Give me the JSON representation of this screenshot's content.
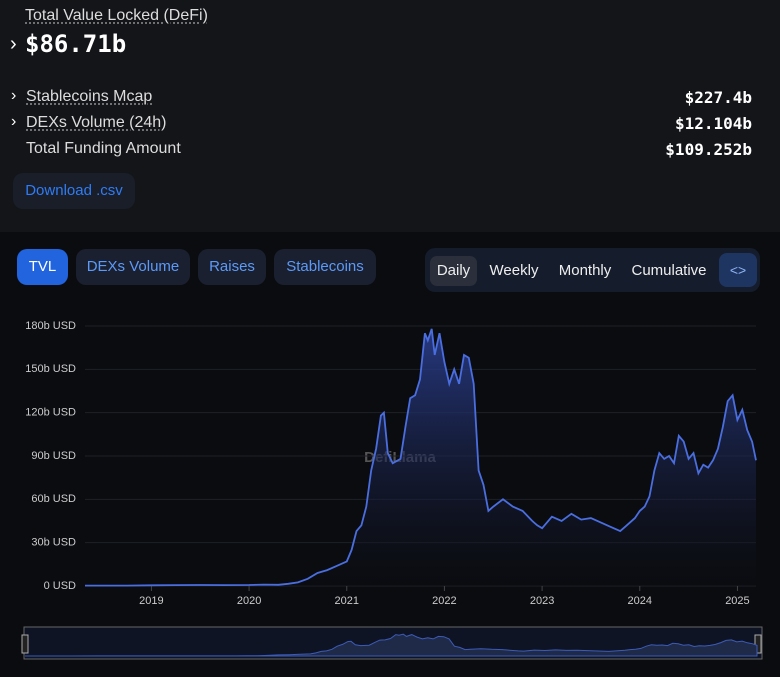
{
  "header": {
    "tvl_label": "Total Value Locked (DeFi)",
    "tvl_value": "$86.71b"
  },
  "stats": [
    {
      "label": "Stablecoins Mcap",
      "value": "$227.4b"
    },
    {
      "label": "DEXs Volume (24h)",
      "value": "$12.104b"
    },
    {
      "label": "Total Funding Amount",
      "value": "$109.252b"
    }
  ],
  "download": "Download .csv",
  "tabs": [
    "TVL",
    "DEXs Volume",
    "Raises",
    "Stablecoins"
  ],
  "periods": [
    "Daily",
    "Weekly",
    "Monthly",
    "Cumulative"
  ],
  "watermark": "DefiLlama",
  "chart_data": {
    "type": "area",
    "color": "#4a6ee0",
    "grid": true,
    "x": [
      2018.32,
      2018.5,
      2018.75,
      2019.0,
      2019.25,
      2019.5,
      2019.75,
      2020.0,
      2020.15,
      2020.3,
      2020.4,
      2020.5,
      2020.6,
      2020.7,
      2020.8,
      2020.9,
      2021.0,
      2021.05,
      2021.1,
      2021.15,
      2021.2,
      2021.25,
      2021.3,
      2021.35,
      2021.38,
      2021.42,
      2021.47,
      2021.55,
      2021.6,
      2021.65,
      2021.7,
      2021.75,
      2021.8,
      2021.83,
      2021.87,
      2021.9,
      2021.95,
      2022.0,
      2022.05,
      2022.1,
      2022.15,
      2022.2,
      2022.25,
      2022.3,
      2022.35,
      2022.4,
      2022.45,
      2022.5,
      2022.6,
      2022.7,
      2022.8,
      2022.9,
      2022.95,
      2023.0,
      2023.1,
      2023.2,
      2023.3,
      2023.4,
      2023.5,
      2023.6,
      2023.7,
      2023.8,
      2023.85,
      2023.95,
      2024.0,
      2024.05,
      2024.1,
      2024.15,
      2024.2,
      2024.25,
      2024.3,
      2024.35,
      2024.4,
      2024.45,
      2024.5,
      2024.55,
      2024.6,
      2024.65,
      2024.7,
      2024.75,
      2024.8,
      2024.85,
      2024.9,
      2024.95,
      2025.0,
      2025.05,
      2025.1,
      2025.15,
      2025.19
    ],
    "values": [
      0.3,
      0.3,
      0.3,
      0.5,
      0.6,
      0.7,
      0.6,
      0.7,
      1.0,
      0.8,
      1.5,
      2.5,
      5,
      9,
      11,
      14,
      17,
      25,
      38,
      42,
      55,
      80,
      95,
      118,
      120,
      92,
      85,
      88,
      110,
      130,
      132,
      143,
      175,
      170,
      178,
      160,
      175,
      155,
      140,
      150,
      140,
      160,
      158,
      140,
      80,
      70,
      52,
      55,
      60,
      55,
      52,
      45,
      42,
      40,
      48,
      45,
      50,
      46,
      47,
      44,
      41,
      38,
      41,
      47,
      52,
      55,
      62,
      80,
      92,
      88,
      90,
      85,
      104,
      100,
      88,
      92,
      78,
      84,
      82,
      87,
      95,
      110,
      128,
      132,
      115,
      122,
      108,
      100,
      87
    ],
    "xlim": [
      2018.32,
      2025.19
    ],
    "ylim": [
      0,
      180
    ],
    "xticks": [
      2019,
      2020,
      2021,
      2022,
      2023,
      2024,
      2025
    ],
    "yticks": [
      {
        "value": 0,
        "label": "0 USD"
      },
      {
        "value": 30,
        "label": "30b USD"
      },
      {
        "value": 60,
        "label": "60b USD"
      },
      {
        "value": 90,
        "label": "90b USD"
      },
      {
        "value": 120,
        "label": "120b USD"
      },
      {
        "value": 150,
        "label": "150b USD"
      },
      {
        "value": 180,
        "label": "180b USD"
      }
    ]
  }
}
